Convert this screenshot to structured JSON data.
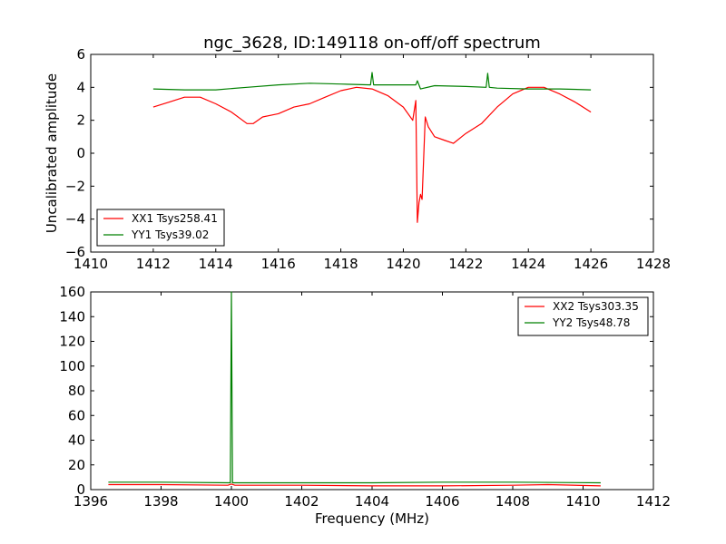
{
  "chart_data": [
    {
      "type": "line",
      "title": "ngc_3628, ID:149118 on-off/off spectrum",
      "xlabel": "",
      "ylabel": "Uncalibrated amplitude",
      "xlim": [
        1410,
        1428
      ],
      "ylim": [
        -6,
        6
      ],
      "xticks": [
        "1410",
        "1412",
        "1414",
        "1416",
        "1418",
        "1420",
        "1422",
        "1424",
        "1426",
        "1428"
      ],
      "yticks": [
        "−6",
        "−4",
        "−2",
        "0",
        "2",
        "4",
        "6"
      ],
      "legend_position": "lower-left",
      "series": [
        {
          "name": "XX1 Tsys258.41",
          "color": "#ff0000",
          "x": [
            1412.0,
            1412.5,
            1413.0,
            1413.5,
            1414.0,
            1414.5,
            1415.0,
            1415.2,
            1415.5,
            1416.0,
            1416.5,
            1417.0,
            1417.5,
            1418.0,
            1418.5,
            1419.0,
            1419.5,
            1420.0,
            1420.3,
            1420.4,
            1420.45,
            1420.5,
            1420.55,
            1420.6,
            1420.7,
            1420.8,
            1421.0,
            1421.3,
            1421.6,
            1422.0,
            1422.5,
            1423.0,
            1423.5,
            1424.0,
            1424.5,
            1425.0,
            1425.5,
            1426.0
          ],
          "y": [
            2.8,
            3.1,
            3.4,
            3.4,
            3.0,
            2.5,
            1.8,
            1.8,
            2.2,
            2.4,
            2.8,
            3.0,
            3.4,
            3.8,
            4.0,
            3.9,
            3.5,
            2.8,
            2.0,
            3.2,
            -4.2,
            -3.0,
            -2.5,
            -2.8,
            2.2,
            1.6,
            1.0,
            0.8,
            0.6,
            1.2,
            1.8,
            2.8,
            3.6,
            4.0,
            4.0,
            3.6,
            3.1,
            2.5
          ]
        },
        {
          "name": "YY1 Tsys39.02",
          "color": "#008000",
          "x": [
            1412.0,
            1413.0,
            1414.0,
            1415.0,
            1416.0,
            1417.0,
            1418.0,
            1418.95,
            1419.0,
            1419.05,
            1419.5,
            1420.0,
            1420.4,
            1420.45,
            1420.55,
            1421.0,
            1422.0,
            1422.65,
            1422.7,
            1422.75,
            1423.0,
            1424.0,
            1425.0,
            1426.0
          ],
          "y": [
            3.9,
            3.85,
            3.85,
            4.0,
            4.15,
            4.25,
            4.2,
            4.15,
            4.9,
            4.15,
            4.15,
            4.15,
            4.15,
            4.4,
            3.9,
            4.1,
            4.05,
            4.0,
            4.85,
            4.0,
            3.95,
            3.9,
            3.9,
            3.85
          ]
        }
      ]
    },
    {
      "type": "line",
      "title": "",
      "xlabel": "Frequency (MHz)",
      "ylabel": "",
      "xlim": [
        1396,
        1412
      ],
      "ylim": [
        0,
        160
      ],
      "xticks": [
        "1396",
        "1398",
        "1400",
        "1402",
        "1404",
        "1406",
        "1408",
        "1410",
        "1412"
      ],
      "yticks": [
        "0",
        "20",
        "40",
        "60",
        "80",
        "100",
        "120",
        "140",
        "160"
      ],
      "legend_position": "top-right",
      "series": [
        {
          "name": "XX2 Tsys303.35",
          "color": "#ff0000",
          "x": [
            1396.5,
            1398.0,
            1399.9,
            1400.0,
            1400.1,
            1402.0,
            1404.0,
            1406.0,
            1408.0,
            1409.0,
            1410.5
          ],
          "y": [
            4.0,
            4.0,
            3.5,
            4.5,
            3.5,
            3.5,
            3.0,
            3.0,
            3.5,
            4.0,
            3.0
          ]
        },
        {
          "name": "YY2 Tsys48.78",
          "color": "#008000",
          "x": [
            1396.5,
            1398.0,
            1399.97,
            1400.0,
            1400.03,
            1402.0,
            1404.0,
            1406.0,
            1408.0,
            1410.5
          ],
          "y": [
            6.0,
            6.0,
            5.5,
            160.0,
            5.5,
            5.5,
            5.5,
            6.0,
            6.0,
            5.5
          ]
        }
      ]
    }
  ]
}
